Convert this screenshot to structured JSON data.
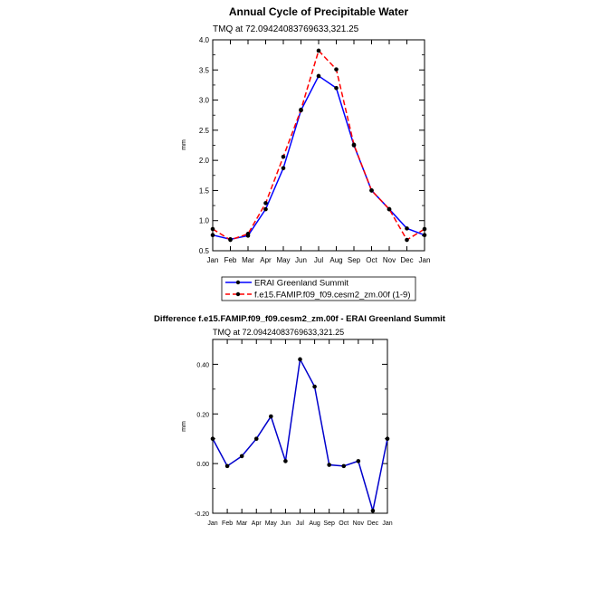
{
  "chart_data": [
    {
      "type": "line",
      "title": "Annual Cycle of Precipitable Water",
      "subtitle": "TMQ at 72.09424083769633,321.25",
      "ylabel": "mm",
      "xlabel": "",
      "categories": [
        "Jan",
        "Feb",
        "Mar",
        "Apr",
        "May",
        "Jun",
        "Jul",
        "Aug",
        "Sep",
        "Oct",
        "Nov",
        "Dec",
        "Jan"
      ],
      "ylim": [
        0.5,
        4.0
      ],
      "yticks": [
        "0.5",
        "1.0",
        "1.5",
        "2.0",
        "2.5",
        "3.0",
        "3.5",
        "4.0"
      ],
      "legend_position": "bottom",
      "series": [
        {
          "name": "ERAI Greenland Summit",
          "color": "#0000ff",
          "dash": "solid",
          "values": [
            0.76,
            0.69,
            0.75,
            1.19,
            1.87,
            2.83,
            3.4,
            3.2,
            2.25,
            1.5,
            1.19,
            0.87,
            0.76
          ]
        },
        {
          "name": "f.e15.FAMIP.f09_f09.cesm2_zm.00f (1-9)",
          "color": "#ff0000",
          "dash": "dashed",
          "values": [
            0.86,
            0.68,
            0.78,
            1.29,
            2.06,
            2.84,
            3.82,
            3.51,
            2.26,
            1.5,
            1.19,
            0.68,
            0.86
          ]
        }
      ]
    },
    {
      "type": "line",
      "title": "Difference f.e15.FAMIP.f09_f09.cesm2_zm.00f - ERAI Greenland Summit",
      "subtitle": "TMQ at 72.09424083769633,321.25",
      "ylabel": "mm",
      "xlabel": "",
      "categories": [
        "Jan",
        "Feb",
        "Mar",
        "Apr",
        "May",
        "Jun",
        "Jul",
        "Aug",
        "Sep",
        "Oct",
        "Nov",
        "Dec",
        "Jan"
      ],
      "ylim": [
        -0.2,
        0.5
      ],
      "yticks": [
        "-0.20",
        "0.00",
        "0.20",
        "0.40"
      ],
      "series": [
        {
          "color": "#0000cc",
          "values": [
            0.1,
            -0.01,
            0.03,
            0.1,
            0.19,
            0.01,
            0.42,
            0.31,
            -0.005,
            -0.01,
            0.01,
            -0.19,
            0.1
          ]
        }
      ]
    }
  ]
}
